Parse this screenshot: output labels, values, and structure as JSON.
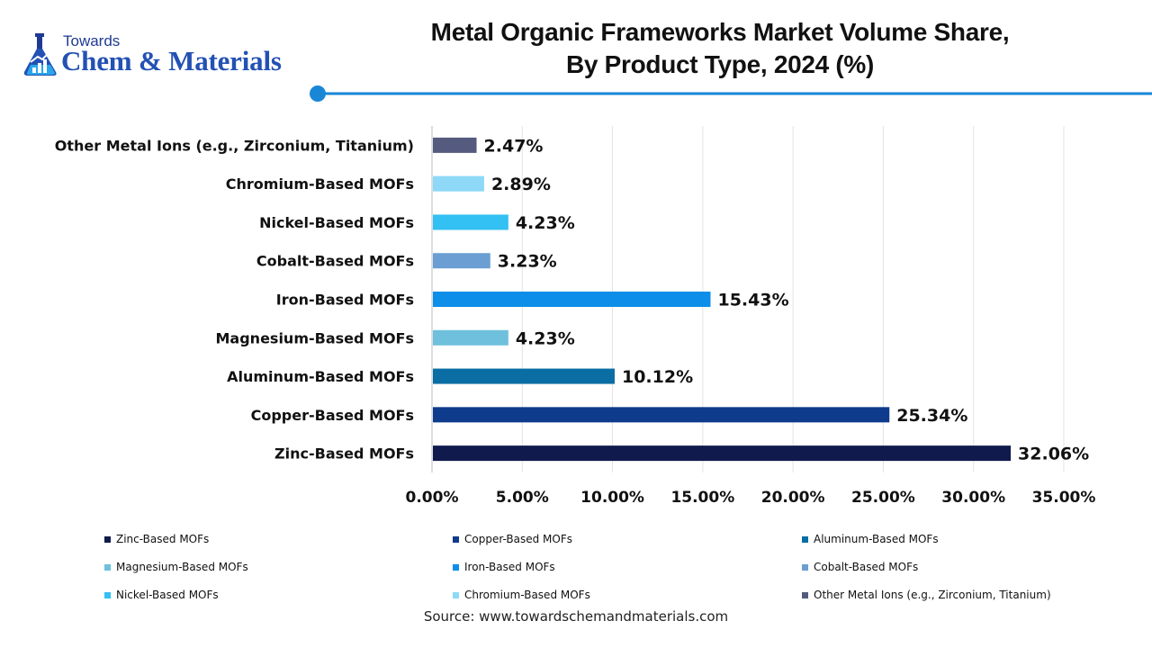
{
  "brand": {
    "line1": "Towards",
    "line2": "Chem & Materials",
    "accent_color": "#1a87d6"
  },
  "chart_data": {
    "type": "bar",
    "orientation": "horizontal",
    "title_line1": "Metal Organic Frameworks Market Volume Share,",
    "title_line2": "By Product Type, 2024 (%)",
    "categories": [
      "Other Metal Ions (e.g., Zirconium, Titanium)",
      "Chromium-Based MOFs",
      "Nickel-Based MOFs",
      "Cobalt-Based MOFs",
      "Iron-Based MOFs",
      "Magnesium-Based MOFs",
      "Aluminum-Based MOFs",
      "Copper-Based MOFs",
      "Zinc-Based MOFs"
    ],
    "values": [
      2.47,
      2.89,
      4.23,
      3.23,
      15.43,
      4.23,
      10.12,
      25.34,
      32.06
    ],
    "value_labels": [
      "2.47%",
      "2.89%",
      "4.23%",
      "3.23%",
      "15.43%",
      "4.23%",
      "10.12%",
      "25.34%",
      "32.06%"
    ],
    "colors": [
      "#545b7f",
      "#8dd9f7",
      "#33c0f2",
      "#6b9fd3",
      "#0d8ee8",
      "#6ec0dc",
      "#0a6da3",
      "#0e3b8c",
      "#101a4d"
    ],
    "xlim": [
      0,
      35
    ],
    "xticks": [
      "0.00%",
      "5.00%",
      "10.00%",
      "15.00%",
      "20.00%",
      "25.00%",
      "30.00%",
      "35.00%"
    ],
    "xtick_values": [
      0,
      5,
      10,
      15,
      20,
      25,
      30,
      35
    ],
    "grid": true,
    "legend_position": "bottom",
    "legend": [
      "Zinc-Based MOFs",
      "Copper-Based MOFs",
      "Aluminum-Based MOFs",
      "Magnesium-Based MOFs",
      "Iron-Based MOFs",
      "Cobalt-Based MOFs",
      "Nickel-Based MOFs",
      "Chromium-Based MOFs",
      "Other Metal Ions (e.g., Zirconium, Titanium)"
    ],
    "legend_colors": [
      "#101a4d",
      "#0e3b8c",
      "#0a6da3",
      "#6ec0dc",
      "#0d8ee8",
      "#6b9fd3",
      "#33c0f2",
      "#8dd9f7",
      "#545b7f"
    ]
  },
  "source": "Source: www.towardschemandmaterials.com"
}
